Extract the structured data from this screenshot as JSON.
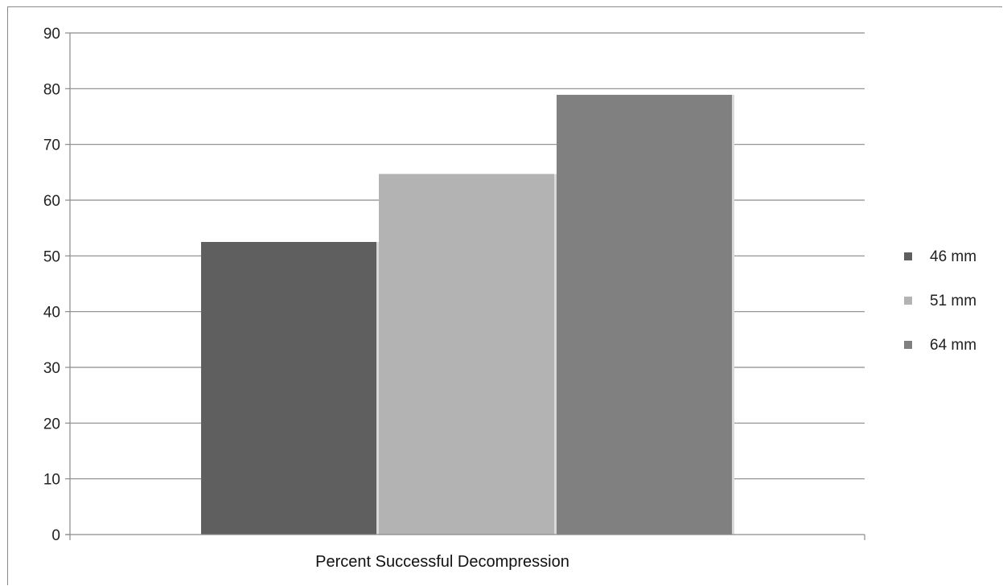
{
  "chart_data": {
    "type": "bar",
    "categories": [
      "Percent Successful Decompression"
    ],
    "series": [
      {
        "name": "46 mm",
        "values": [
          52.5
        ],
        "color": "#5f5f5f"
      },
      {
        "name": "51 mm",
        "values": [
          64.7
        ],
        "color": "#b3b3b3"
      },
      {
        "name": "64 mm",
        "values": [
          78.9
        ],
        "color": "#808080"
      }
    ],
    "yticks": [
      "0",
      "10",
      "20",
      "30",
      "40",
      "50",
      "60",
      "70",
      "80",
      "90"
    ],
    "ylim": [
      0,
      90
    ],
    "grid": true,
    "legend_position": "right",
    "title": "",
    "xlabel": "",
    "ylabel": ""
  }
}
